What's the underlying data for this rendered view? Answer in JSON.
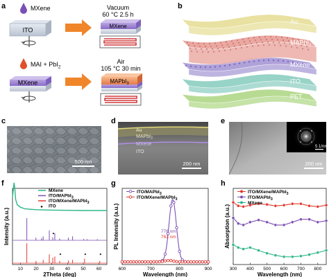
{
  "panel_letters": {
    "a": "a",
    "b": "b",
    "c": "c",
    "d": "d",
    "e": "e",
    "f": "f",
    "g": "g",
    "h": "h"
  },
  "panel_a": {
    "step1": {
      "precursor": "MXene",
      "substrate": "ITO",
      "condition_1": "Vacuum",
      "condition_2": "60 °C   2.5 h",
      "product_layer": "MXene",
      "drop_color": "#7b4fb8"
    },
    "step2": {
      "precursor": "MAI + PbI",
      "precursor_sub": "2",
      "substrate": "MXene",
      "condition_1": "Air",
      "condition_2": "105 °C   30 min",
      "product_layer": "MAPbI",
      "product_sub": "3",
      "drop_color": "#e0502a"
    },
    "arrow_color": "#f0852a",
    "heater_color": "#d0393b"
  },
  "panel_b": {
    "layers": [
      {
        "label": "Au",
        "color": "#e8df9a"
      },
      {
        "label": "MAPbI",
        "sub": "3",
        "color": "#e9a19a"
      },
      {
        "label": "MXene",
        "color": "#a99bd6"
      },
      {
        "label": "ITO",
        "color": "#8fd0c3"
      },
      {
        "label": "PET",
        "color": "#b2d98a"
      }
    ]
  },
  "panel_c": {
    "scale": "500 nm"
  },
  "panel_d": {
    "labels": [
      {
        "text": "Au",
        "sub": ""
      },
      {
        "text": "MAPbI",
        "sub": "3"
      },
      {
        "text": "MXene",
        "sub": ""
      },
      {
        "text": "ITO",
        "sub": ""
      }
    ],
    "scale": "200 nm"
  },
  "panel_e": {
    "scale": "200 nm",
    "inset_scale": "1/nm",
    "inset_scale_prefix": "5"
  },
  "chart_data": [
    {
      "panel": "f",
      "type": "line",
      "xlabel": "2Theta (deg)",
      "ylabel": "Intensity (a.u.)",
      "xlim": [
        5,
        65
      ],
      "xticks": [
        10,
        20,
        30,
        40,
        50,
        60
      ],
      "series": [
        {
          "name": "MXene",
          "color": "#2bb58a",
          "style": "decay",
          "x": [
            5,
            6,
            6.5,
            7,
            8,
            10,
            13,
            20,
            30,
            40,
            50,
            65
          ],
          "y": [
            0.6,
            0.95,
            0.8,
            0.55,
            0.42,
            0.36,
            0.32,
            0.3,
            0.29,
            0.285,
            0.28,
            0.28
          ]
        },
        {
          "name": "ITO/MAPbI3",
          "color": "#7d4fb2",
          "style": "peaks",
          "baseline": 0.0,
          "peaks": [
            [
              14.1,
              1.0
            ],
            [
              19.9,
              0.12
            ],
            [
              23.5,
              0.1
            ],
            [
              24.5,
              0.18
            ],
            [
              28.4,
              0.45
            ],
            [
              30.6,
              0.14
            ],
            [
              31.9,
              0.32
            ],
            [
              35.0,
              0.08
            ],
            [
              40.5,
              0.12
            ],
            [
              43.2,
              0.18
            ],
            [
              50.3,
              0.06
            ],
            [
              52.5,
              0.05
            ],
            [
              58.9,
              0.05
            ]
          ]
        },
        {
          "name": "ITO/MXene/MAPbI3",
          "color": "#e0392f",
          "style": "peaks",
          "baseline": 0.0,
          "peaks": [
            [
              14.1,
              0.9
            ],
            [
              19.9,
              0.1
            ],
            [
              24.5,
              0.15
            ],
            [
              28.4,
              0.4
            ],
            [
              30.6,
              0.25
            ],
            [
              31.9,
              0.3
            ],
            [
              35.0,
              0.1
            ],
            [
              40.5,
              0.12
            ],
            [
              43.2,
              0.15
            ],
            [
              50.8,
              0.2
            ],
            [
              60.5,
              0.1
            ]
          ]
        }
      ],
      "legend": [
        {
          "text": "MXene",
          "sub": ""
        },
        {
          "text": "ITO/MAPbI",
          "sub": "3"
        },
        {
          "text": "ITO/MXene/MAPbI",
          "sub": "3"
        },
        {
          "text": "ITO",
          "sub": ""
        }
      ],
      "ito_markers": [
        30.6,
        35.0,
        50.8,
        60.5
      ]
    },
    {
      "panel": "g",
      "type": "line",
      "xlabel": "Wavelength (nm)",
      "ylabel": "PL Intensity (a.u.)",
      "xlim": [
        600,
        900
      ],
      "xticks": [
        600,
        700,
        800,
        900
      ],
      "series": [
        {
          "name": "ITO/MAPbI3",
          "color": "#7d4fb2",
          "center": 776,
          "peak": 0.92,
          "width": 18,
          "baseline": 0.04
        },
        {
          "name": "ITO/MXene/MAPbI3",
          "color": "#e0392f",
          "center": 763,
          "peak": 0.02,
          "width": 20,
          "baseline": 0.04
        }
      ],
      "legend": [
        {
          "text": "ITO/MAPbI",
          "sub": "3"
        },
        {
          "text": "ITO/MXene/MAPbI",
          "sub": "3"
        }
      ],
      "annotations": [
        {
          "text": "776 nm",
          "color": "#7d4fb2"
        },
        {
          "text": "763 nm",
          "color": "#e0392f"
        }
      ]
    },
    {
      "panel": "h",
      "type": "line",
      "xlabel": "Wavelength (nm)",
      "ylabel": "Absorption (a.u.)",
      "xlim": [
        300,
        850
      ],
      "xticks": [
        300,
        400,
        500,
        600,
        700,
        800
      ],
      "series": [
        {
          "name": "ITO/MXene/MAPbI3",
          "color": "#e0392f",
          "x": [
            300,
            330,
            360,
            400,
            450,
            500,
            550,
            600,
            650,
            700,
            750,
            800,
            850
          ],
          "y": [
            0.88,
            0.83,
            0.82,
            0.84,
            0.86,
            0.85,
            0.83,
            0.84,
            0.86,
            0.86,
            0.83,
            0.82,
            0.84
          ]
        },
        {
          "name": "ITO/MAPbI3",
          "color": "#7d4fb2",
          "x": [
            300,
            330,
            360,
            400,
            450,
            500,
            550,
            600,
            650,
            700,
            750,
            800,
            850
          ],
          "y": [
            0.66,
            0.58,
            0.56,
            0.6,
            0.63,
            0.6,
            0.56,
            0.56,
            0.6,
            0.64,
            0.64,
            0.6,
            0.62
          ]
        },
        {
          "name": "MXene",
          "color": "#2bb58a",
          "x": [
            300,
            330,
            360,
            400,
            450,
            500,
            550,
            600,
            650,
            700,
            750,
            800,
            850
          ],
          "y": [
            0.28,
            0.24,
            0.22,
            0.24,
            0.2,
            0.16,
            0.13,
            0.11,
            0.11,
            0.12,
            0.14,
            0.17,
            0.2
          ]
        }
      ],
      "legend": [
        {
          "text": "ITO/MXene/MAPbI",
          "sub": "3"
        },
        {
          "text": "ITO/MAPbI",
          "sub": "3"
        },
        {
          "text": "MXene",
          "sub": ""
        }
      ]
    }
  ]
}
